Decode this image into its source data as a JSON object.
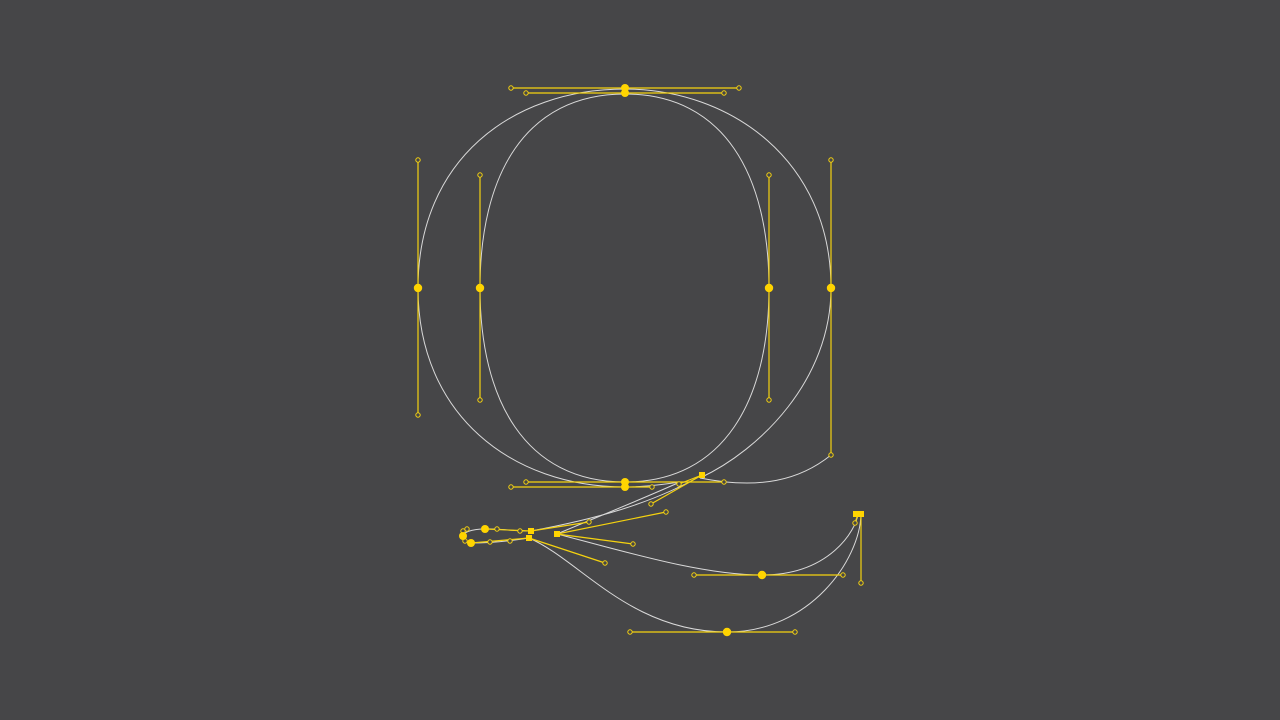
{
  "glyph": {
    "name_icon": "letter-q-bezier-outline",
    "outline_color": "#d9d9d9",
    "anchor_color": "#ffd400",
    "handle_color": "#f5d20f",
    "background_color": "#464648"
  }
}
